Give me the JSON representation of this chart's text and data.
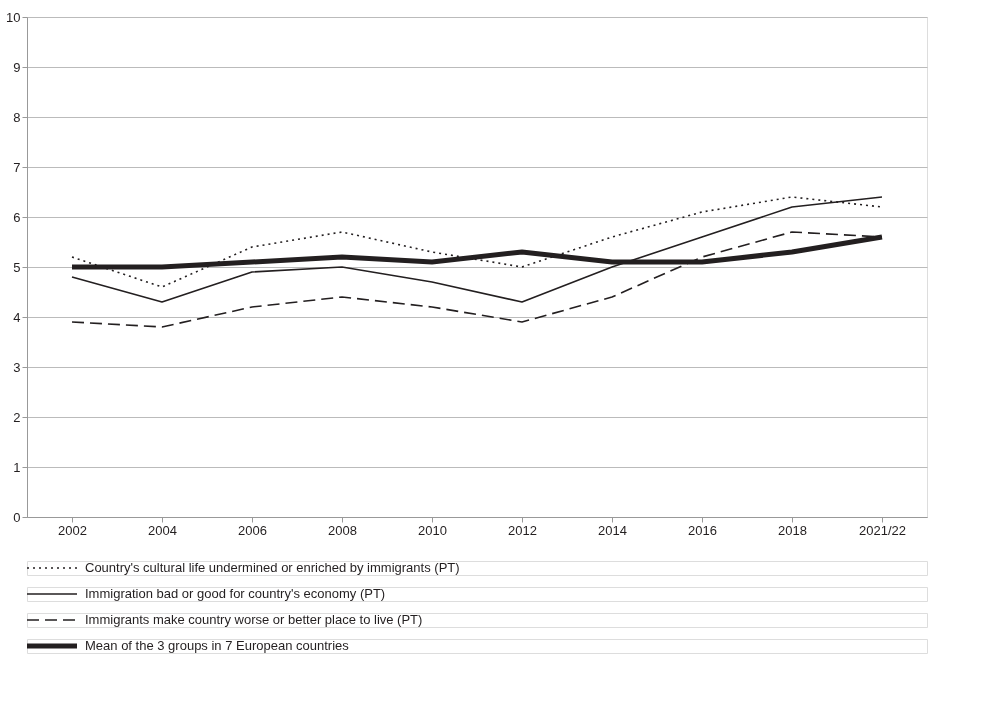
{
  "chart_data": {
    "type": "line",
    "categories": [
      "2002",
      "2004",
      "2006",
      "2008",
      "2010",
      "2012",
      "2014",
      "2016",
      "2018",
      "2021/22"
    ],
    "series": [
      {
        "name": "Country's cultural life undermined or enriched by immigrants (PT)",
        "color": "#231f20",
        "line_style": "dotted",
        "values": [
          5.2,
          4.6,
          5.4,
          5.7,
          5.3,
          5.0,
          5.6,
          6.1,
          6.4,
          6.2
        ]
      },
      {
        "name": "Immigration bad or good for country's economy (PT)",
        "color": "#231f20",
        "line_style": "solid",
        "values": [
          4.8,
          4.3,
          4.9,
          5.0,
          4.7,
          4.3,
          5.0,
          5.6,
          6.2,
          6.4
        ]
      },
      {
        "name": "Immigrants make country worse or  better place to live (PT)",
        "color": "#231f20",
        "line_style": "dashed",
        "values": [
          3.9,
          3.8,
          4.2,
          4.4,
          4.2,
          3.9,
          4.4,
          5.2,
          5.7,
          5.6
        ]
      },
      {
        "name": "Mean of the 3 groups in 7 European countries",
        "color": "#231f20",
        "line_style": "solid",
        "values": [
          5.0,
          5.0,
          5.1,
          5.2,
          5.1,
          5.3,
          5.1,
          5.1,
          5.3,
          5.6
        ]
      }
    ],
    "ylim": [
      0,
      10
    ],
    "yticks": [
      0,
      1,
      2,
      3,
      4,
      5,
      6,
      7,
      8,
      9,
      10
    ],
    "grid": "y",
    "legend": "bottom",
    "marker": "none"
  }
}
